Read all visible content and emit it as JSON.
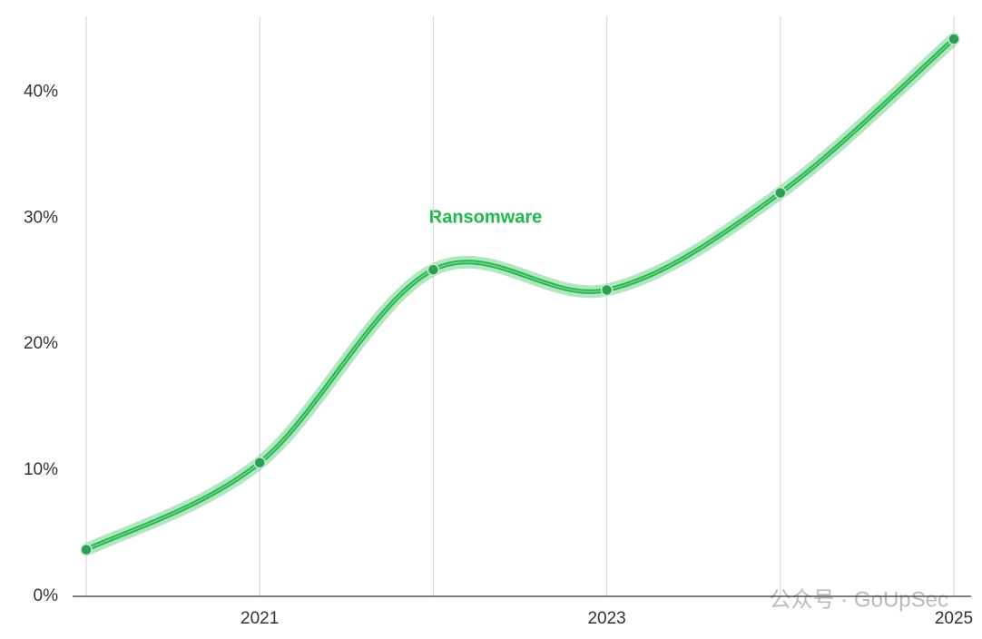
{
  "chart_data": {
    "type": "line",
    "categories": [
      null,
      "2021",
      null,
      "2023",
      null,
      "2025"
    ],
    "series": [
      {
        "name": "Ransomware",
        "color": "#1fb84a",
        "values": [
          3.7,
          10.6,
          25.9,
          24.3,
          32.0,
          44.2
        ]
      }
    ],
    "ylim": [
      0,
      46
    ],
    "yticks": [
      {
        "value": 0,
        "label": "0%"
      },
      {
        "value": 10,
        "label": "10%"
      },
      {
        "value": 20,
        "label": "20%"
      },
      {
        "value": 30,
        "label": "30%"
      },
      {
        "value": 40,
        "label": "40%"
      }
    ],
    "grid": true,
    "watermark": "公众号 · GoUpSec"
  }
}
